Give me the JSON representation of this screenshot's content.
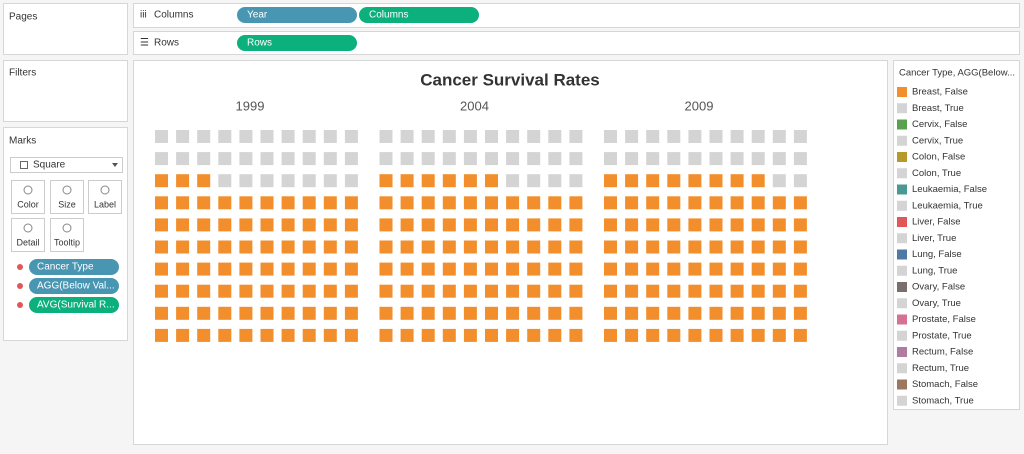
{
  "shelves": {
    "columns": {
      "label": "Columns",
      "pills": [
        "Year",
        "Columns"
      ]
    },
    "rows": {
      "label": "Rows",
      "pills": [
        "Rows"
      ]
    }
  },
  "cards": {
    "pages": "Pages",
    "filters": "Filters",
    "marks": {
      "title": "Marks",
      "mark_type": "Square",
      "buttons": [
        "Color",
        "Size",
        "Label",
        "Detail",
        "Tooltip"
      ],
      "fields": [
        "Cancer Type",
        "AGG(Below Val...",
        "AVG(Survival R..."
      ]
    }
  },
  "chart_data": {
    "type": "waffle",
    "title": "Cancer Survival Rates",
    "categories": [
      "1999",
      "2004",
      "2009"
    ],
    "values": [
      73,
      76,
      78
    ],
    "color": "#f28e2b",
    "empty_color": "#d4d4d4"
  },
  "legend": {
    "title": "Cancer Type, AGG(Below...",
    "items": [
      {
        "label": "Breast, False",
        "color": "#f28e2b"
      },
      {
        "label": "Breast, True",
        "color": "#d4d4d4"
      },
      {
        "label": "Cervix, False",
        "color": "#59a14f"
      },
      {
        "label": "Cervix, True",
        "color": "#d4d4d4"
      },
      {
        "label": "Colon, False",
        "color": "#b6992d"
      },
      {
        "label": "Colon, True",
        "color": "#d4d4d4"
      },
      {
        "label": "Leukaemia, False",
        "color": "#499894"
      },
      {
        "label": "Leukaemia, True",
        "color": "#d4d4d4"
      },
      {
        "label": "Liver, False",
        "color": "#e15759"
      },
      {
        "label": "Liver, True",
        "color": "#d4d4d4"
      },
      {
        "label": "Lung, False",
        "color": "#4e79a7"
      },
      {
        "label": "Lung, True",
        "color": "#d4d4d4"
      },
      {
        "label": "Ovary, False",
        "color": "#79706e"
      },
      {
        "label": "Ovary, True",
        "color": "#d4d4d4"
      },
      {
        "label": "Prostate, False",
        "color": "#d37295"
      },
      {
        "label": "Prostate, True",
        "color": "#d4d4d4"
      },
      {
        "label": "Rectum, False",
        "color": "#b07aa1"
      },
      {
        "label": "Rectum, True",
        "color": "#d4d4d4"
      },
      {
        "label": "Stomach, False",
        "color": "#9d7660"
      },
      {
        "label": "Stomach, True",
        "color": "#d4d4d4"
      }
    ]
  }
}
